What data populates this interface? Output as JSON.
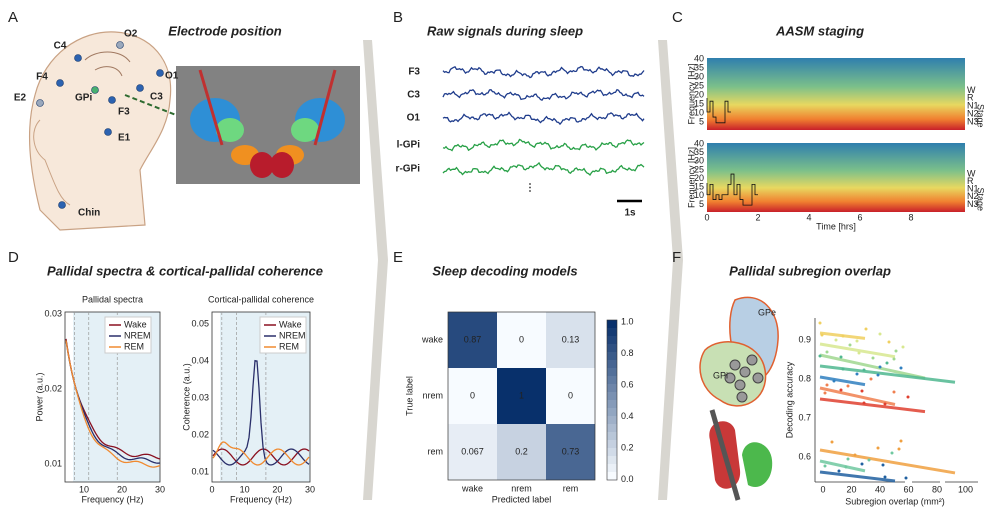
{
  "panel_a": {
    "letter": "A",
    "title": "Electrode position",
    "electrodes": [
      "O2",
      "C4",
      "F4",
      "O1",
      "E2",
      "GPi",
      "C3",
      "F3",
      "E1",
      "Chin"
    ]
  },
  "panel_b": {
    "letter": "B",
    "title": "Raw signals during sleep",
    "channels": [
      "F3",
      "C3",
      "O1",
      "l-GPi",
      "r-GPi"
    ],
    "ellipsis": "⋮",
    "scale": "1s"
  },
  "panel_c": {
    "letter": "C",
    "title": "AASM staging",
    "y_label": "Frequency [Hz]",
    "y_ticks": [
      "40",
      "35",
      "30",
      "25",
      "20",
      "15",
      "10",
      "5"
    ],
    "stage_label": "Stage",
    "stages": [
      "W",
      "R",
      "N1",
      "N2",
      "N3"
    ],
    "x_label": "Time [hrs]",
    "x_ticks": [
      "0",
      "2",
      "4",
      "6",
      "8"
    ]
  },
  "panel_d": {
    "letter": "D",
    "title": "Pallidal spectra & cortical-pallidal coherence",
    "legend": [
      "Wake",
      "NREM",
      "REM"
    ],
    "spectra": {
      "title": "Pallidal spectra",
      "y_label": "Power (a.u.)",
      "y_ticks": [
        "0.03",
        "0.02",
        "0.01"
      ],
      "x_label": "Frequency (Hz)",
      "x_ticks": [
        "10",
        "20",
        "30"
      ]
    },
    "coherence": {
      "title": "Cortical-pallidal coherence",
      "y_label": "Coherence (a.u.)",
      "y_ticks": [
        "0.05",
        "0.04",
        "0.03",
        "0.02",
        "0.01"
      ],
      "x_label": "Frequency (Hz)",
      "x_ticks": [
        "0",
        "10",
        "20",
        "30"
      ]
    }
  },
  "panel_e": {
    "letter": "E",
    "title": "Sleep decoding models",
    "labels": [
      "wake",
      "nrem",
      "rem"
    ],
    "matrix": [
      [
        0.87,
        0,
        0.13
      ],
      [
        0,
        1,
        0
      ],
      [
        0.067,
        0.2,
        0.73
      ]
    ],
    "y_label": "True label",
    "x_label": "Predicted label",
    "colorbar_ticks": [
      "1.0",
      "0.8",
      "0.6",
      "0.4",
      "0.2",
      "0.0"
    ]
  },
  "panel_f": {
    "letter": "F",
    "title": "Pallidal subregion overlap",
    "regions": [
      "GPe",
      "GPi"
    ],
    "y_label": "Decoding accuracy",
    "y_ticks": [
      "0.9",
      "0.8",
      "0.7",
      "0.6"
    ],
    "x_label": "Subregion overlap (mm²)",
    "x_ticks": [
      "0",
      "20",
      "40",
      "60",
      "80",
      "100"
    ]
  }
}
